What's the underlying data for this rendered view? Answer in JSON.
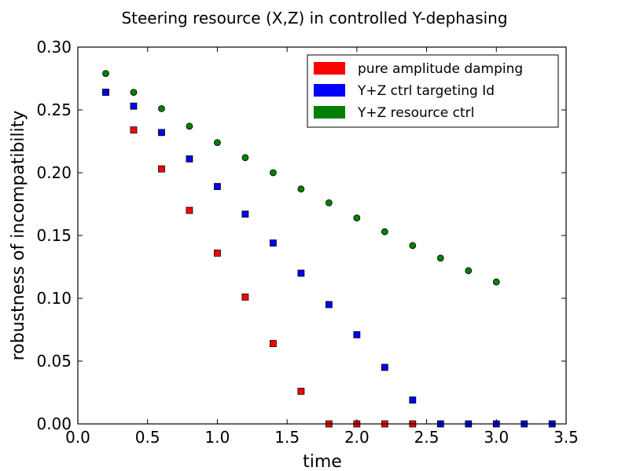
{
  "chart_data": {
    "type": "scatter",
    "title": "Steering resource (X,Z) in controlled Y-dephasing",
    "xlabel": "time",
    "ylabel": "robustness of incompatibility",
    "xlim": [
      0.0,
      3.5
    ],
    "ylim": [
      0.0,
      0.3
    ],
    "xticks": [
      "0.0",
      "0.5",
      "1.0",
      "1.5",
      "2.0",
      "2.5",
      "3.0",
      "3.5"
    ],
    "yticks": [
      "0.00",
      "0.05",
      "0.10",
      "0.15",
      "0.20",
      "0.25",
      "0.30"
    ],
    "xtick_values": [
      0.0,
      0.5,
      1.0,
      1.5,
      2.0,
      2.5,
      3.0,
      3.5
    ],
    "ytick_values": [
      0.0,
      0.05,
      0.1,
      0.15,
      0.2,
      0.25,
      0.3
    ],
    "grid": false,
    "legend_position": "top-right",
    "series": [
      {
        "name": "pure amplitude damping",
        "color": "#ff0000",
        "marker": "square",
        "x": [
          0.2,
          0.4,
          0.6,
          0.8,
          1.0,
          1.2,
          1.4,
          1.6,
          1.8,
          2.0,
          2.2,
          2.4
        ],
        "y": [
          0.264,
          0.234,
          0.203,
          0.17,
          0.136,
          0.101,
          0.064,
          0.026,
          0.0,
          0.0,
          0.0,
          0.0
        ]
      },
      {
        "name": "Y+Z ctrl targeting Id",
        "color": "#0000ff",
        "marker": "square",
        "x": [
          0.2,
          0.4,
          0.6,
          0.8,
          1.0,
          1.2,
          1.4,
          1.6,
          1.8,
          2.0,
          2.2,
          2.4,
          2.6,
          2.8,
          3.0,
          3.2,
          3.4
        ],
        "y": [
          0.264,
          0.253,
          0.232,
          0.211,
          0.189,
          0.167,
          0.144,
          0.12,
          0.095,
          0.071,
          0.045,
          0.019,
          0.0,
          0.0,
          0.0,
          0.0,
          0.0
        ]
      },
      {
        "name": "Y+Z resource ctrl",
        "color": "#008000",
        "marker": "circle",
        "x": [
          0.2,
          0.4,
          0.6,
          0.8,
          1.0,
          1.2,
          1.4,
          1.6,
          1.8,
          2.0,
          2.2,
          2.4,
          2.6,
          2.8,
          3.0
        ],
        "y": [
          0.279,
          0.264,
          0.251,
          0.237,
          0.224,
          0.212,
          0.2,
          0.187,
          0.176,
          0.164,
          0.153,
          0.142,
          0.132,
          0.122,
          0.113
        ]
      }
    ]
  }
}
